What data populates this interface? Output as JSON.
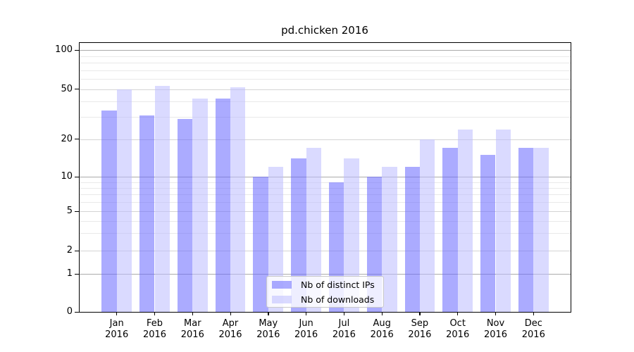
{
  "chart_data": {
    "type": "bar",
    "title": "pd.chicken 2016",
    "categories": [
      "Jan",
      "Feb",
      "Mar",
      "Apr",
      "May",
      "Jun",
      "Jul",
      "Aug",
      "Sep",
      "Oct",
      "Nov",
      "Dec"
    ],
    "category_year": "2016",
    "series": [
      {
        "name": "Nb of distinct IPs",
        "color": "rgba(102,102,255,0.55)",
        "values": [
          34,
          31,
          29,
          42,
          10,
          14,
          9,
          10,
          12,
          17,
          15,
          17
        ]
      },
      {
        "name": "Nb of downloads",
        "color": "rgba(187,187,255,0.55)",
        "values": [
          50,
          53,
          42,
          52,
          12,
          17,
          14,
          12,
          20,
          24,
          24,
          17
        ]
      }
    ],
    "y_axis": {
      "scale": "log-like with zero baseline",
      "tick_values": [
        0,
        1,
        2,
        5,
        10,
        20,
        50,
        100
      ],
      "tick_labels": [
        "0",
        "1",
        "2",
        "5",
        "10",
        "20",
        "50",
        "100"
      ],
      "major_gridline_values": [
        1,
        10,
        100
      ],
      "mid_gridline_values": [
        2,
        5,
        20,
        50
      ],
      "minor_gridline_values": [
        3,
        4,
        6,
        7,
        8,
        9,
        30,
        40,
        60,
        70,
        80,
        90
      ],
      "ylim": [
        0,
        114
      ]
    },
    "legend": {
      "entries": [
        "Nb of distinct IPs",
        "Nb of downloads"
      ],
      "position": "lower center"
    },
    "grid": true,
    "background": "#ffffff"
  },
  "colors": {
    "bar_ips": "rgba(102,102,255,0.55)",
    "bar_downloads": "rgba(187,187,255,0.55)",
    "grid_major": "#ababab",
    "grid_mid": "#d4d4d4",
    "grid_minor": "#e9e9e9",
    "spine": "#000000",
    "text": "#000000",
    "legend_border": "#c9c9c9"
  }
}
